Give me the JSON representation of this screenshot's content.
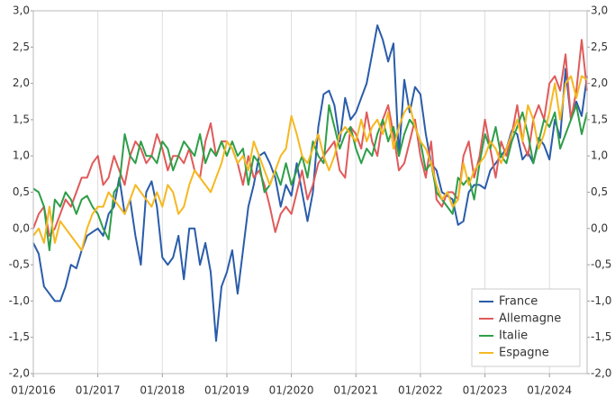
{
  "chart_data": {
    "type": "line",
    "x": [
      "01/2016",
      "02/2016",
      "03/2016",
      "04/2016",
      "05/2016",
      "06/2016",
      "07/2016",
      "08/2016",
      "09/2016",
      "10/2016",
      "11/2016",
      "12/2016",
      "01/2017",
      "02/2017",
      "03/2017",
      "04/2017",
      "05/2017",
      "06/2017",
      "07/2017",
      "08/2017",
      "09/2017",
      "10/2017",
      "11/2017",
      "12/2017",
      "01/2018",
      "02/2018",
      "03/2018",
      "04/2018",
      "05/2018",
      "06/2018",
      "07/2018",
      "08/2018",
      "09/2018",
      "10/2018",
      "11/2018",
      "12/2018",
      "01/2019",
      "02/2019",
      "03/2019",
      "04/2019",
      "05/2019",
      "06/2019",
      "07/2019",
      "08/2019",
      "09/2019",
      "10/2019",
      "11/2019",
      "12/2019",
      "01/2020",
      "02/2020",
      "03/2020",
      "04/2020",
      "05/2020",
      "06/2020",
      "07/2020",
      "08/2020",
      "09/2020",
      "10/2020",
      "11/2020",
      "12/2020",
      "01/2021",
      "02/2021",
      "03/2021",
      "04/2021",
      "05/2021",
      "06/2021",
      "07/2021",
      "08/2021",
      "09/2021",
      "10/2021",
      "11/2021",
      "12/2021",
      "01/2022",
      "02/2022",
      "03/2022",
      "04/2022",
      "05/2022",
      "06/2022",
      "07/2022",
      "08/2022",
      "09/2022",
      "10/2022",
      "11/2022",
      "12/2022",
      "01/2023",
      "02/2023",
      "03/2023",
      "04/2023",
      "05/2023",
      "06/2023",
      "07/2023",
      "08/2023",
      "09/2023",
      "10/2023",
      "11/2023",
      "12/2023",
      "01/2024",
      "02/2024",
      "03/2024",
      "04/2024",
      "05/2024",
      "06/2024",
      "07/2024",
      "08/2024"
    ],
    "xticks": [
      "01/2016",
      "01/2017",
      "01/2018",
      "01/2019",
      "01/2020",
      "01/2021",
      "01/2022",
      "01/2023",
      "01/2024"
    ],
    "ylim": [
      -2,
      3
    ],
    "yticks": [
      {
        "value": -2,
        "label": "-2,0"
      },
      {
        "value": -1.5,
        "label": "-1,5"
      },
      {
        "value": -1,
        "label": "-1,0"
      },
      {
        "value": -0.5,
        "label": "-0,5"
      },
      {
        "value": 0,
        "label": "0,0"
      },
      {
        "value": 0.5,
        "label": "0,5"
      },
      {
        "value": 1,
        "label": "1,0"
      },
      {
        "value": 1.5,
        "label": "1,5"
      },
      {
        "value": 2,
        "label": "2,0"
      },
      {
        "value": 2.5,
        "label": "2,5"
      },
      {
        "value": 3,
        "label": "3,0"
      }
    ],
    "grid": true,
    "legend": "bottom-right",
    "series": [
      {
        "name": "France",
        "color": "#2a5caa",
        "values": [
          -0.2,
          -0.35,
          -0.8,
          -0.9,
          -1.0,
          -1.0,
          -0.8,
          -0.5,
          -0.55,
          -0.3,
          -0.1,
          -0.05,
          0.0,
          -0.1,
          0.2,
          0.3,
          0.7,
          0.2,
          0.4,
          -0.1,
          -0.5,
          0.5,
          0.65,
          0.3,
          -0.4,
          -0.5,
          -0.4,
          -0.1,
          -0.7,
          0.0,
          0.0,
          -0.5,
          -0.2,
          -0.6,
          -1.55,
          -0.8,
          -0.6,
          -0.3,
          -0.9,
          -0.3,
          0.3,
          0.6,
          1.0,
          1.05,
          0.9,
          0.7,
          0.3,
          0.6,
          0.45,
          0.9,
          0.5,
          0.1,
          0.5,
          1.4,
          1.85,
          1.9,
          1.7,
          1.2,
          1.8,
          1.5,
          1.6,
          1.8,
          2.0,
          2.4,
          2.8,
          2.6,
          2.3,
          2.55,
          1.0,
          2.05,
          1.6,
          1.95,
          1.85,
          1.3,
          0.9,
          0.8,
          0.5,
          0.45,
          0.4,
          0.05,
          0.1,
          0.5,
          0.6,
          0.6,
          0.55,
          0.8,
          0.9,
          1.0,
          1.1,
          1.35,
          1.3,
          0.95,
          1.05,
          0.9,
          1.25,
          1.15,
          0.95,
          1.5,
          1.25,
          2.2,
          1.5,
          1.75,
          1.55,
          2.1
        ]
      },
      {
        "name": "Allemagne",
        "color": "#e05a5a",
        "values": [
          0.0,
          0.2,
          0.3,
          -0.1,
          0.0,
          0.2,
          0.4,
          0.3,
          0.5,
          0.7,
          0.7,
          0.9,
          1.0,
          0.6,
          0.7,
          1.0,
          0.8,
          0.6,
          1.0,
          1.2,
          1.1,
          0.9,
          1.0,
          1.3,
          1.1,
          0.8,
          1.0,
          1.0,
          0.9,
          1.1,
          0.8,
          0.7,
          1.2,
          1.45,
          1.0,
          1.2,
          1.2,
          1.1,
          0.9,
          0.6,
          1.0,
          0.7,
          0.8,
          0.6,
          0.3,
          -0.05,
          0.2,
          0.3,
          0.2,
          0.5,
          0.8,
          0.4,
          0.6,
          0.9,
          1.0,
          1.1,
          1.2,
          0.8,
          0.7,
          1.4,
          1.3,
          1.1,
          1.6,
          1.2,
          1.0,
          1.5,
          1.7,
          1.3,
          0.8,
          0.9,
          1.2,
          1.5,
          1.0,
          0.7,
          1.2,
          0.4,
          0.3,
          0.5,
          0.5,
          0.4,
          1.0,
          1.2,
          0.7,
          1.0,
          1.5,
          1.1,
          0.7,
          1.2,
          1.0,
          1.3,
          1.7,
          1.2,
          1.0,
          1.5,
          1.7,
          1.5,
          2.0,
          2.1,
          1.9,
          2.4,
          1.5,
          1.9,
          2.6,
          1.9
        ]
      },
      {
        "name": "Italie",
        "color": "#2e9e48",
        "values": [
          0.55,
          0.5,
          0.3,
          -0.3,
          0.4,
          0.3,
          0.5,
          0.4,
          0.2,
          0.4,
          0.45,
          0.3,
          0.2,
          0.0,
          -0.15,
          0.5,
          0.6,
          1.3,
          1.0,
          0.9,
          1.2,
          1.0,
          1.0,
          0.9,
          1.2,
          1.1,
          0.8,
          1.0,
          1.2,
          1.1,
          1.0,
          1.3,
          0.9,
          1.1,
          1.0,
          1.2,
          1.0,
          1.2,
          1.0,
          1.1,
          0.6,
          1.0,
          0.9,
          0.5,
          0.6,
          0.8,
          0.6,
          0.9,
          0.6,
          0.8,
          1.0,
          0.7,
          1.2,
          1.0,
          0.9,
          1.7,
          1.4,
          1.1,
          1.3,
          1.4,
          1.1,
          0.9,
          1.1,
          1.0,
          1.3,
          1.5,
          1.2,
          1.4,
          1.0,
          1.3,
          1.5,
          1.4,
          1.2,
          0.8,
          0.9,
          0.5,
          0.4,
          0.3,
          0.2,
          0.7,
          0.6,
          0.7,
          0.4,
          0.9,
          1.3,
          1.1,
          1.4,
          1.0,
          0.9,
          1.2,
          1.4,
          1.6,
          1.3,
          0.9,
          1.2,
          1.5,
          1.4,
          1.6,
          1.1,
          1.3,
          1.5,
          1.7,
          1.3,
          1.6
        ]
      },
      {
        "name": "Espagne",
        "color": "#f5b820",
        "values": [
          -0.1,
          0.0,
          -0.2,
          0.3,
          -0.2,
          0.1,
          0.0,
          -0.1,
          -0.2,
          -0.3,
          0.0,
          0.2,
          0.3,
          0.3,
          0.5,
          0.4,
          0.3,
          0.2,
          0.4,
          0.6,
          0.5,
          0.4,
          0.3,
          0.5,
          0.3,
          0.6,
          0.5,
          0.2,
          0.3,
          0.6,
          0.8,
          0.7,
          0.6,
          0.5,
          0.7,
          0.9,
          1.2,
          1.1,
          0.9,
          1.0,
          0.8,
          1.2,
          1.0,
          0.8,
          0.6,
          0.8,
          1.0,
          1.1,
          1.55,
          1.3,
          1.0,
          0.9,
          1.1,
          1.3,
          1.0,
          0.8,
          1.0,
          1.3,
          1.4,
          1.3,
          1.2,
          1.5,
          1.2,
          1.4,
          1.5,
          1.3,
          1.6,
          1.1,
          1.4,
          1.6,
          1.7,
          1.4,
          1.2,
          1.1,
          0.9,
          0.6,
          0.4,
          0.5,
          0.3,
          0.4,
          0.9,
          0.6,
          0.8,
          0.9,
          1.0,
          1.2,
          1.1,
          0.9,
          1.1,
          1.3,
          1.5,
          1.2,
          1.7,
          1.5,
          1.1,
          1.3,
          1.6,
          2.0,
          1.5,
          2.0,
          2.1,
          1.8,
          2.1,
          2.05
        ]
      }
    ]
  }
}
